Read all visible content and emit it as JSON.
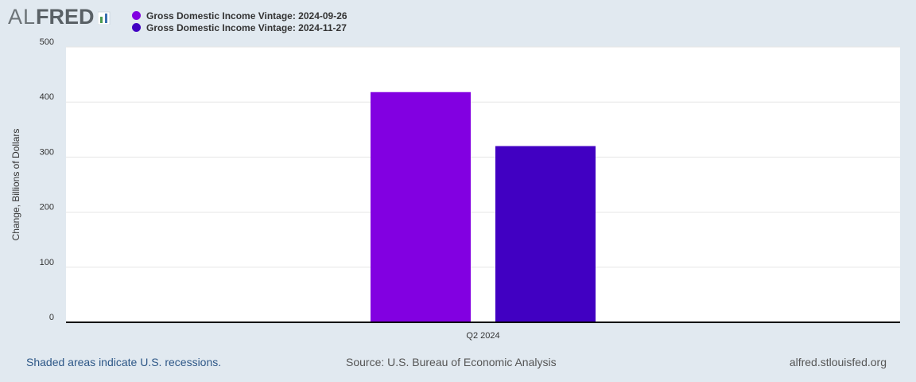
{
  "header": {
    "logo_prefix": "AL",
    "logo_main": "FRED",
    "logo_icon": "fred-bars-icon"
  },
  "legend": [
    {
      "label": "Gross Domestic Income Vintage: 2024-09-26",
      "color": "#8200e1"
    },
    {
      "label": "Gross Domestic Income Vintage: 2024-11-27",
      "color": "#4100c2"
    }
  ],
  "chart_data": {
    "type": "bar",
    "categories": [
      "Q2 2024"
    ],
    "series": [
      {
        "name": "Gross Domestic Income Vintage: 2024-09-26",
        "values": [
          418
        ],
        "color": "#8200e1"
      },
      {
        "name": "Gross Domestic Income Vintage: 2024-11-27",
        "values": [
          320
        ],
        "color": "#4100c2"
      }
    ],
    "ylabel": "Change, Billions of Dollars",
    "ylim": [
      0,
      500
    ],
    "yticks": [
      0,
      100,
      200,
      300,
      400,
      500
    ],
    "grid": true,
    "legend_position": "top-left"
  },
  "footer": {
    "recession_note": "Shaded areas indicate U.S. recessions.",
    "source": "Source: U.S. Bureau of Economic Analysis",
    "site": "alfred.stlouisfed.org"
  }
}
